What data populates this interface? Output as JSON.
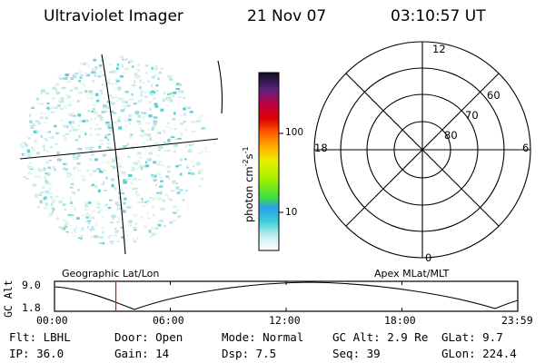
{
  "header": {
    "instrument": "Ultraviolet Imager",
    "date": "21 Nov 07",
    "time": "03:10:57 UT"
  },
  "colorbar": {
    "unit_label_text": "photon cm",
    "unit_exp1": "-2",
    "unit_s": "s",
    "unit_exp2": "-1",
    "ticks": [
      "100",
      "10"
    ]
  },
  "polar_plot": {
    "mlt_labels": {
      "top": "12",
      "bottom": "0",
      "left": "18",
      "right": "6"
    },
    "mlat_labels": [
      "60",
      "70",
      "80"
    ]
  },
  "strip": {
    "ylabel": "GC Alt",
    "ytick_top": "9.0",
    "ytick_bottom": "1.8",
    "left_title": "Geographic Lat/Lon",
    "right_title": "Apex  MLat/MLT",
    "xticks": [
      "00:00",
      "06:00",
      "12:00",
      "18:00",
      "23:59"
    ],
    "marker_time_hours": 3.18
  },
  "footer": {
    "flt": "Flt:  LBHL",
    "ip": "IP:  36.0",
    "door": "Door:  Open",
    "gain": "Gain:  14",
    "mode": "Mode:  Normal",
    "dsp": "Dsp:      7.5",
    "gcalt": "GC Alt:  2.9  Re",
    "seq": "Seq:  39",
    "glat": "GLat:     9.7",
    "glon": "GLon:  224.4"
  },
  "colors": {
    "marker": "#ff0000",
    "background": "#ffffff"
  }
}
